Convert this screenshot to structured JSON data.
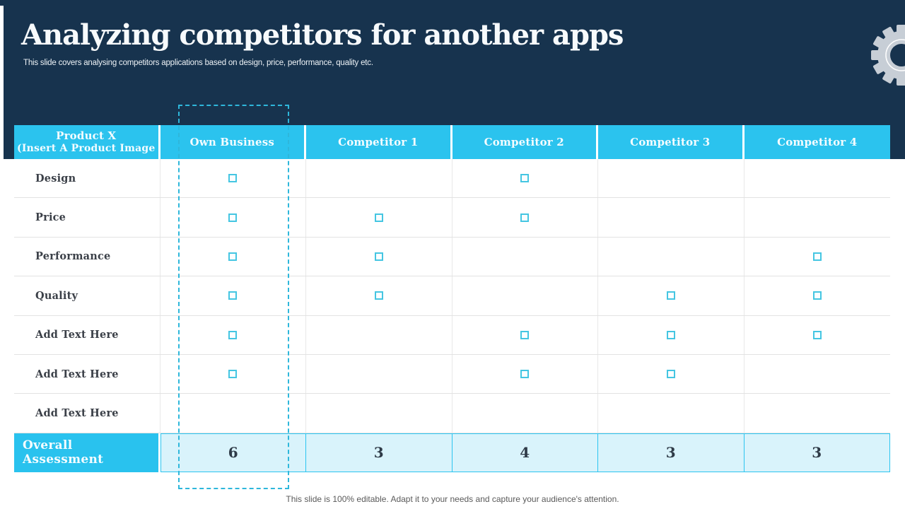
{
  "slide": {
    "title": "Analyzing competitors for another apps",
    "subtitle": "This slide covers analysing competitors applications based on design, price, performance, quality etc.",
    "footer": "This slide is 100% editable. Adapt it to your needs and capture your audience's attention."
  },
  "table": {
    "header": {
      "product_line1": "Product X",
      "product_line2": "(Insert A Product Image",
      "columns": [
        "Own Business",
        "Competitor 1",
        "Competitor 2",
        "Competitor 3",
        "Competitor 4"
      ]
    },
    "rows": [
      {
        "label": "Design",
        "checks": [
          true,
          false,
          true,
          false,
          false
        ]
      },
      {
        "label": "Price",
        "checks": [
          true,
          true,
          true,
          false,
          false
        ]
      },
      {
        "label": "Performance",
        "checks": [
          true,
          true,
          false,
          false,
          true
        ]
      },
      {
        "label": "Quality",
        "checks": [
          true,
          true,
          false,
          true,
          true
        ]
      },
      {
        "label": "Add Text Here",
        "checks": [
          true,
          false,
          true,
          true,
          true
        ]
      },
      {
        "label": "Add Text Here",
        "checks": [
          true,
          false,
          true,
          true,
          false
        ]
      },
      {
        "label": "Add Text Here",
        "checks": [
          false,
          false,
          false,
          false,
          false
        ]
      }
    ],
    "overall": {
      "label_line1": "Overall",
      "label_line2": "Assessment",
      "values": [
        "6",
        "3",
        "4",
        "3",
        "3"
      ]
    }
  },
  "icons": {
    "gear": "gear-icon"
  },
  "colors": {
    "navy": "#17334E",
    "cyan": "#2BC3EE",
    "light_cyan": "#D9F3FB",
    "checkbox_border": "#45C6E2",
    "dashed_border": "#2EB7DB",
    "gear_gray": "#C7CED6",
    "footer_text": "#5A5A5A"
  }
}
